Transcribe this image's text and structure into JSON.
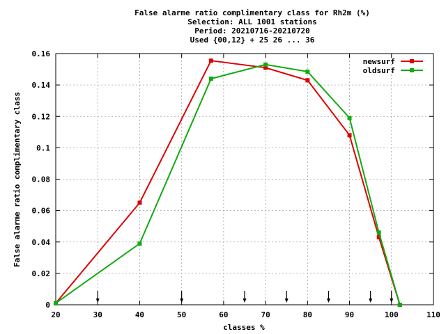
{
  "chart_data": {
    "type": "line",
    "title_lines": [
      "False alarme ratio complimentary class  for Rh2m (%)",
      "Selection: ALL   1001 stations",
      "Period: 20210716-20210720",
      "Used {00,12} + 25 26 ... 36"
    ],
    "xlabel": "classes %",
    "ylabel": "False alarme ratio complimentary class",
    "xlim": [
      20,
      110
    ],
    "ylim": [
      0,
      0.16
    ],
    "x_ticks": [
      20,
      30,
      40,
      50,
      60,
      70,
      80,
      90,
      100,
      110
    ],
    "y_ticks": [
      0,
      0.02,
      0.04,
      0.06,
      0.08,
      0.1,
      0.12,
      0.14,
      0.16
    ],
    "x_tick_labels": [
      "20",
      "30",
      "40",
      "50",
      "60",
      "70",
      "80",
      "90",
      "100",
      "110"
    ],
    "y_tick_labels": [
      "0",
      "0.02",
      "0.04",
      "0.06",
      "0.08",
      "0.1",
      "0.12",
      "0.14",
      "0.16"
    ],
    "grid": true,
    "legend_position": "top-right",
    "arrows_x": [
      30,
      50,
      65,
      75,
      85,
      95,
      100
    ],
    "series": [
      {
        "name": "newsurf",
        "color": "#dd0000",
        "x": [
          20,
          40,
          57,
          70,
          80,
          90,
          97,
          102
        ],
        "y": [
          0.001,
          0.065,
          0.1555,
          0.151,
          0.143,
          0.108,
          0.043,
          0.0
        ]
      },
      {
        "name": "oldsurf",
        "color": "#11aa11",
        "x": [
          20,
          40,
          57,
          70,
          80,
          90,
          97,
          102
        ],
        "y": [
          0.001,
          0.039,
          0.144,
          0.153,
          0.1485,
          0.119,
          0.046,
          0.0
        ]
      }
    ]
  }
}
